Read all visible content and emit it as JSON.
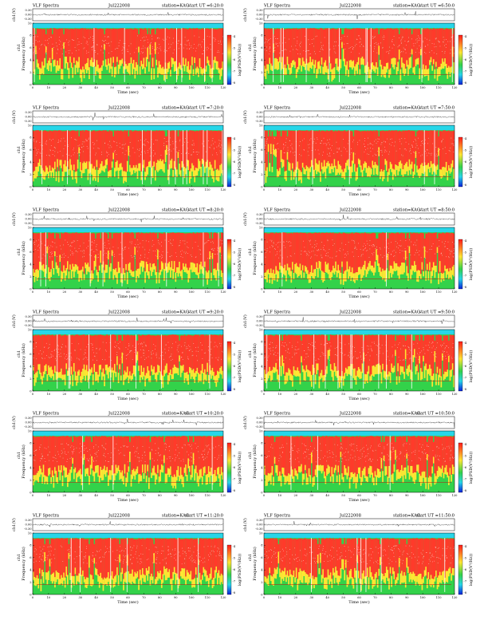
{
  "chart_data": [
    {
      "type": "heatmap",
      "title": "VLF Spectra",
      "date": "Jul222008",
      "station": "station=KAG",
      "start": "start UT =6:20:0",
      "top_ylabel": "ch1(V)",
      "top_yticks": [
        "0.30",
        "0.00",
        "-0.30"
      ],
      "ylabel": "Frequency (kHz)",
      "channel_label": "ch1",
      "yticks": [
        "10",
        "8",
        "6",
        "4",
        "2",
        "0"
      ],
      "xlabel": "Time (sec)",
      "xticks": [
        "0",
        "10",
        "20",
        "30",
        "40",
        "50",
        "60",
        "70",
        "80",
        "90",
        "100",
        "110",
        "120"
      ],
      "xlim": [
        0,
        120
      ],
      "ylim": [
        0,
        10
      ],
      "colorbar_label": "log(PSD(V²/Hz))",
      "colorbar_ticks": [
        "-4",
        "-5",
        "-6",
        "-7",
        "-8"
      ],
      "colors": {
        "high": "#ff3a2a",
        "mid": "#ffe633",
        "low": "#33d24a",
        "band": "#27d6e8"
      }
    },
    {
      "type": "heatmap",
      "title": "VLF Spectra",
      "date": "Jul222008",
      "station": "station=KAG",
      "start": "start UT =6:50:0",
      "top_ylabel": "ch1(V)",
      "top_yticks": [
        "0.30",
        "0.00",
        "-0.30"
      ],
      "ylabel": "Frequency (kHz)",
      "channel_label": "ch1",
      "yticks": [
        "10",
        "8",
        "6",
        "4",
        "2",
        "0"
      ],
      "xlabel": "Time (sec)",
      "xticks": [
        "0",
        "10",
        "20",
        "30",
        "40",
        "50",
        "60",
        "70",
        "80",
        "90",
        "100",
        "110",
        "120"
      ],
      "xlim": [
        0,
        120
      ],
      "ylim": [
        0,
        10
      ],
      "colorbar_label": "log(PSD(V²/Hz))",
      "colorbar_ticks": [
        "-4",
        "-5",
        "-6",
        "-7",
        "-8"
      ],
      "colors": {
        "high": "#ff3a2a",
        "mid": "#ffe633",
        "low": "#33d24a",
        "band": "#27d6e8"
      }
    },
    {
      "type": "heatmap",
      "title": "VLF Spectra",
      "date": "Jul222008",
      "station": "station=KAG",
      "start": "start UT =7:20:0",
      "top_ylabel": "ch1(V)",
      "top_yticks": [
        "0.30",
        "0.00",
        "-0.30"
      ],
      "ylabel": "Frequency (kHz)",
      "channel_label": "ch1",
      "yticks": [
        "10",
        "8",
        "6",
        "4",
        "2",
        "0"
      ],
      "xlabel": "Time (sec)",
      "xticks": [
        "0",
        "10",
        "20",
        "30",
        "40",
        "50",
        "60",
        "70",
        "80",
        "90",
        "100",
        "110",
        "120"
      ],
      "xlim": [
        0,
        120
      ],
      "ylim": [
        0,
        10
      ],
      "colorbar_label": "log(PSD(V²/Hz))",
      "colorbar_ticks": [
        "-4",
        "-5",
        "-6",
        "-7",
        "-8"
      ],
      "colors": {
        "high": "#ff3a2a",
        "mid": "#ffe633",
        "low": "#33d24a",
        "band": "#27d6e8"
      }
    },
    {
      "type": "heatmap",
      "title": "VLF Spectra",
      "date": "Jul222008",
      "station": "station=KAG",
      "start": "start UT =7:50:0",
      "top_ylabel": "ch1(V)",
      "top_yticks": [
        "0.30",
        "0.00",
        "-0.30"
      ],
      "ylabel": "Frequency (kHz)",
      "channel_label": "ch1",
      "yticks": [
        "10",
        "8",
        "6",
        "4",
        "2",
        "0"
      ],
      "xlabel": "Time (sec)",
      "xticks": [
        "0",
        "10",
        "20",
        "30",
        "40",
        "50",
        "60",
        "70",
        "80",
        "90",
        "100",
        "110",
        "120"
      ],
      "xlim": [
        0,
        120
      ],
      "ylim": [
        0,
        10
      ],
      "colorbar_label": "log(PSD(V²/Hz))",
      "colorbar_ticks": [
        "-4",
        "-5",
        "-6",
        "-7",
        "-8"
      ],
      "colors": {
        "high": "#ff3a2a",
        "mid": "#ffe633",
        "low": "#33d24a",
        "band": "#27d6e8"
      }
    },
    {
      "type": "heatmap",
      "title": "VLF Spectra",
      "date": "Jul222008",
      "station": "station=KAG",
      "start": "start UT =8:20:0",
      "top_ylabel": "ch1(V)",
      "top_yticks": [
        "0.30",
        "0.00",
        "-0.30"
      ],
      "ylabel": "Frequency (kHz)",
      "channel_label": "ch1",
      "yticks": [
        "10",
        "8",
        "6",
        "4",
        "2",
        "0"
      ],
      "xlabel": "Time (sec)",
      "xticks": [
        "0",
        "10",
        "20",
        "30",
        "40",
        "50",
        "60",
        "70",
        "80",
        "90",
        "100",
        "110",
        "120"
      ],
      "xlim": [
        0,
        120
      ],
      "ylim": [
        0,
        10
      ],
      "colorbar_label": "log(PSD(V²/Hz))",
      "colorbar_ticks": [
        "-4",
        "-5",
        "-6",
        "-7",
        "-8"
      ],
      "colors": {
        "high": "#ff3a2a",
        "mid": "#ffe633",
        "low": "#33d24a",
        "band": "#27d6e8"
      }
    },
    {
      "type": "heatmap",
      "title": "VLF Spectra",
      "date": "Jul222008",
      "station": "station=KAG",
      "start": "start UT =8:50:0",
      "top_ylabel": "ch1(V)",
      "top_yticks": [
        "0.30",
        "0.00",
        "-0.30"
      ],
      "ylabel": "Frequency (kHz)",
      "channel_label": "ch1",
      "yticks": [
        "10",
        "8",
        "6",
        "4",
        "2",
        "0"
      ],
      "xlabel": "Time (sec)",
      "xticks": [
        "0",
        "10",
        "20",
        "30",
        "40",
        "50",
        "60",
        "70",
        "80",
        "90",
        "100",
        "110",
        "120"
      ],
      "xlim": [
        0,
        120
      ],
      "ylim": [
        0,
        10
      ],
      "colorbar_label": "log(PSD(V²/Hz))",
      "colorbar_ticks": [
        "-4",
        "-5",
        "-6",
        "-7",
        "-8"
      ],
      "colors": {
        "high": "#ff3a2a",
        "mid": "#ffe633",
        "low": "#33d24a",
        "band": "#27d6e8"
      }
    },
    {
      "type": "heatmap",
      "title": "VLF Spectra",
      "date": "Jul222008",
      "station": "station=KAG",
      "start": "start UT =9:20:0",
      "top_ylabel": "ch1(V)",
      "top_yticks": [
        "0.30",
        "0.00",
        "-0.30"
      ],
      "ylabel": "Frequency (kHz)",
      "channel_label": "ch1",
      "yticks": [
        "10",
        "8",
        "6",
        "4",
        "2",
        "0"
      ],
      "xlabel": "Time (sec)",
      "xticks": [
        "0",
        "10",
        "20",
        "30",
        "40",
        "50",
        "60",
        "70",
        "80",
        "90",
        "100",
        "110",
        "120"
      ],
      "xlim": [
        0,
        120
      ],
      "ylim": [
        0,
        10
      ],
      "colorbar_label": "log(PSD(V²/Hz))",
      "colorbar_ticks": [
        "-4",
        "-5",
        "-6",
        "-7",
        "-8"
      ],
      "colors": {
        "high": "#ff3a2a",
        "mid": "#ffe633",
        "low": "#33d24a",
        "band": "#27d6e8"
      }
    },
    {
      "type": "heatmap",
      "title": "VLF Spectra",
      "date": "Jul222008",
      "station": "station=KAG",
      "start": "start UT =9:50:0",
      "top_ylabel": "ch1(V)",
      "top_yticks": [
        "0.30",
        "0.00",
        "-0.30"
      ],
      "ylabel": "Frequency (kHz)",
      "channel_label": "ch1",
      "yticks": [
        "10",
        "8",
        "6",
        "4",
        "2",
        "0"
      ],
      "xlabel": "Time (sec)",
      "xticks": [
        "0",
        "10",
        "20",
        "30",
        "40",
        "50",
        "60",
        "70",
        "80",
        "90",
        "100",
        "110",
        "120"
      ],
      "xlim": [
        0,
        120
      ],
      "ylim": [
        0,
        10
      ],
      "colorbar_label": "log(PSD(V²/Hz))",
      "colorbar_ticks": [
        "-4",
        "-5",
        "-6",
        "-7",
        "-8"
      ],
      "colors": {
        "high": "#ff3a2a",
        "mid": "#ffe633",
        "low": "#33d24a",
        "band": "#27d6e8"
      }
    },
    {
      "type": "heatmap",
      "title": "VLF Spectra",
      "date": "Jul222008",
      "station": "station=KAG",
      "start": "start UT =10:20:0",
      "top_ylabel": "ch1(V)",
      "top_yticks": [
        "0.30",
        "0.00",
        "-0.30"
      ],
      "ylabel": "Frequency (kHz)",
      "channel_label": "ch1",
      "yticks": [
        "10",
        "8",
        "6",
        "4",
        "2",
        "0"
      ],
      "xlabel": "Time (sec)",
      "xticks": [
        "0",
        "10",
        "20",
        "30",
        "40",
        "50",
        "60",
        "70",
        "80",
        "90",
        "100",
        "110",
        "120"
      ],
      "xlim": [
        0,
        120
      ],
      "ylim": [
        0,
        10
      ],
      "colorbar_label": "log(PSD(V²/Hz))",
      "colorbar_ticks": [
        "-4",
        "-5",
        "-6",
        "-7",
        "-8"
      ],
      "colors": {
        "high": "#ff3a2a",
        "mid": "#ffe633",
        "low": "#33d24a",
        "band": "#27d6e8"
      }
    },
    {
      "type": "heatmap",
      "title": "VLF Spectra",
      "date": "Jul222008",
      "station": "station=KAG",
      "start": "start UT =10:50:0",
      "top_ylabel": "ch1(V)",
      "top_yticks": [
        "0.30",
        "0.00",
        "-0.30"
      ],
      "ylabel": "Frequency (kHz)",
      "channel_label": "ch1",
      "yticks": [
        "10",
        "8",
        "6",
        "4",
        "2",
        "0"
      ],
      "xlabel": "Time (sec)",
      "xticks": [
        "0",
        "10",
        "20",
        "30",
        "40",
        "50",
        "60",
        "70",
        "80",
        "90",
        "100",
        "110",
        "120"
      ],
      "xlim": [
        0,
        120
      ],
      "ylim": [
        0,
        10
      ],
      "colorbar_label": "log(PSD(V²/Hz))",
      "colorbar_ticks": [
        "-4",
        "-5",
        "-6",
        "-7",
        "-8"
      ],
      "colors": {
        "high": "#ff3a2a",
        "mid": "#ffe633",
        "low": "#33d24a",
        "band": "#27d6e8"
      }
    },
    {
      "type": "heatmap",
      "title": "VLF Spectra",
      "date": "Jul222008",
      "station": "station=KAG",
      "start": "start UT =11:20:0",
      "top_ylabel": "ch1(V)",
      "top_yticks": [
        "0.30",
        "0.00",
        "-0.30"
      ],
      "ylabel": "Frequency (kHz)",
      "channel_label": "ch1",
      "yticks": [
        "10",
        "8",
        "6",
        "4",
        "2",
        "0"
      ],
      "xlabel": "Time (sec)",
      "xticks": [
        "0",
        "10",
        "20",
        "30",
        "40",
        "50",
        "60",
        "70",
        "80",
        "90",
        "100",
        "110",
        "120"
      ],
      "xlim": [
        0,
        120
      ],
      "ylim": [
        0,
        10
      ],
      "colorbar_label": "log(PSD(V²/Hz))",
      "colorbar_ticks": [
        "-4",
        "-5",
        "-6",
        "-7",
        "-8"
      ],
      "colors": {
        "high": "#ff3a2a",
        "mid": "#ffe633",
        "low": "#33d24a",
        "band": "#27d6e8"
      }
    },
    {
      "type": "heatmap",
      "title": "VLF Spectra",
      "date": "Jul222008",
      "station": "station=KAG",
      "start": "start UT =11:50:0",
      "top_ylabel": "ch1(V)",
      "top_yticks": [
        "0.30",
        "0.00",
        "-0.30"
      ],
      "ylabel": "Frequency (kHz)",
      "channel_label": "ch1",
      "yticks": [
        "10",
        "8",
        "6",
        "4",
        "2",
        "0"
      ],
      "xlabel": "Time (sec)",
      "xticks": [
        "0",
        "10",
        "20",
        "30",
        "40",
        "50",
        "60",
        "70",
        "80",
        "90",
        "100",
        "110",
        "120"
      ],
      "xlim": [
        0,
        120
      ],
      "ylim": [
        0,
        10
      ],
      "colorbar_label": "log(PSD(V²/Hz))",
      "colorbar_ticks": [
        "-4",
        "-5",
        "-6",
        "-7",
        "-8"
      ],
      "colors": {
        "high": "#ff3a2a",
        "mid": "#ffe633",
        "low": "#33d24a",
        "band": "#27d6e8"
      }
    }
  ]
}
